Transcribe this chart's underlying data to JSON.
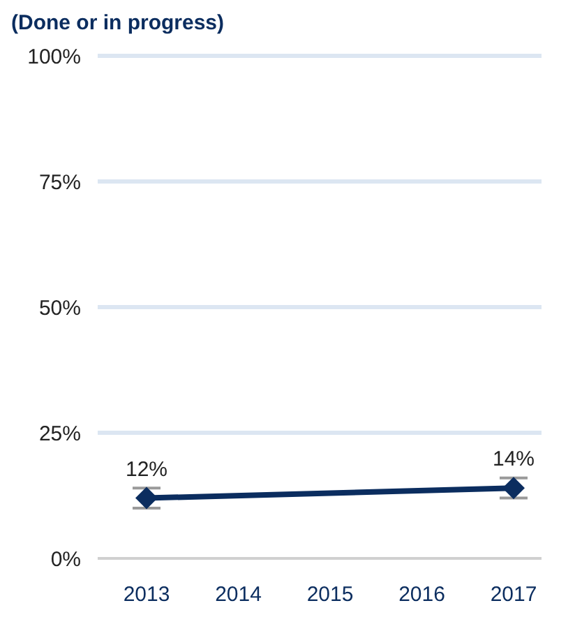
{
  "chart_data": {
    "type": "line",
    "title": "(Done or in progress)",
    "categories": [
      "2013",
      "2014",
      "2015",
      "2016",
      "2017"
    ],
    "series": [
      {
        "color": "#0b2d5f",
        "values": [
          12,
          null,
          null,
          null,
          14
        ],
        "errors": [
          2,
          null,
          null,
          null,
          2
        ],
        "value_labels": [
          "12%",
          null,
          null,
          null,
          "14%"
        ]
      }
    ],
    "ylim": [
      0,
      100
    ],
    "yticks": [
      {
        "value": 0,
        "label": "0%"
      },
      {
        "value": 25,
        "label": "25%"
      },
      {
        "value": 50,
        "label": "50%"
      },
      {
        "value": 75,
        "label": "75%"
      },
      {
        "value": 100,
        "label": "100%"
      }
    ],
    "grid": "y",
    "marker": "diamond",
    "line_style": "solid"
  }
}
